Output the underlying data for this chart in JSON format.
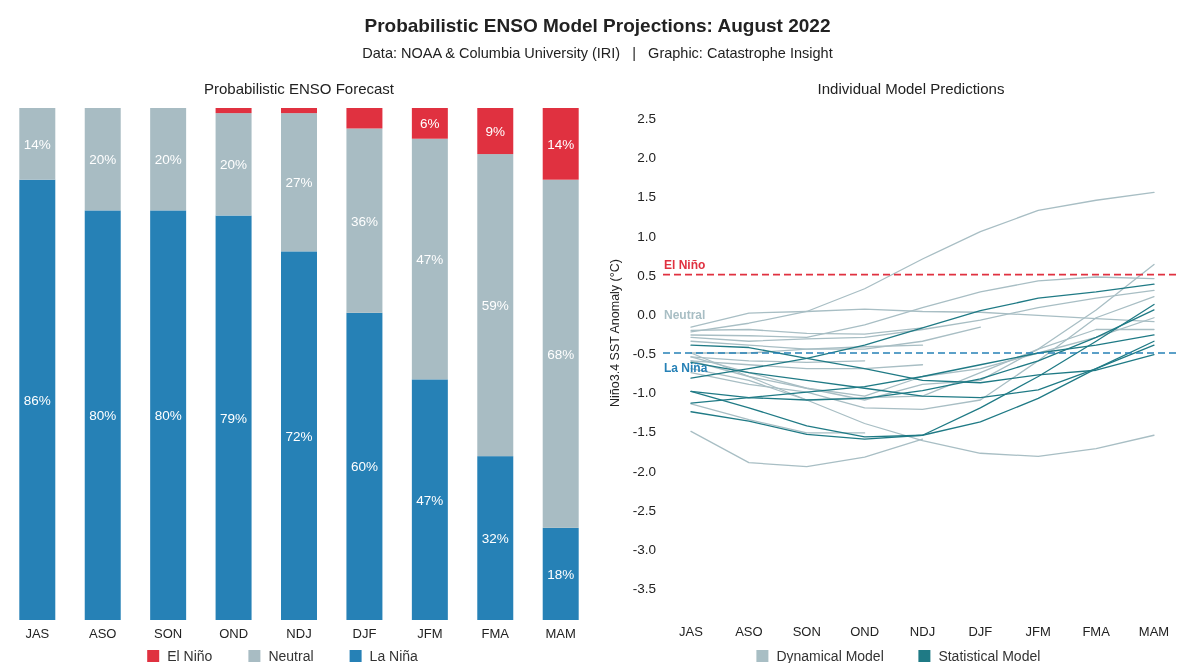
{
  "chart_data": [
    {
      "type": "other",
      "title": "Probabilistic ENSO Model Projections: August 2022",
      "subtitle": "Data: NOAA & Columbia University (IRI)   |   Graphic: Catastrophe Insight"
    },
    {
      "type": "bar",
      "title": "Probabilistic ENSO Forecast",
      "stacked": true,
      "categories": [
        "JAS",
        "ASO",
        "SON",
        "OND",
        "NDJ",
        "DJF",
        "JFM",
        "FMA",
        "MAM"
      ],
      "ylim": [
        0,
        100
      ],
      "tick_labels": "x",
      "grid": false,
      "legend": "bottom",
      "series": [
        {
          "name": "La Niña",
          "color": "#2681b6",
          "values": [
            86,
            80,
            80,
            79,
            72,
            60,
            47,
            32,
            18
          ],
          "value_labels": [
            "86%",
            "80%",
            "80%",
            "79%",
            "72%",
            "60%",
            "47%",
            "32%",
            "18%"
          ]
        },
        {
          "name": "Neutral",
          "color": "#a8bcc3",
          "values": [
            14,
            20,
            20,
            20,
            27,
            36,
            47,
            59,
            68
          ],
          "value_labels": [
            "14%",
            "20%",
            "20%",
            "20%",
            "27%",
            "36%",
            "47%",
            "59%",
            "68%"
          ]
        },
        {
          "name": "El Niño",
          "color": "#e03140",
          "values": [
            0,
            0,
            0,
            1,
            1,
            4,
            6,
            9,
            14
          ],
          "value_labels": [
            null,
            null,
            null,
            null,
            null,
            null,
            "6%",
            "9%",
            "14%"
          ]
        }
      ]
    },
    {
      "type": "line",
      "title": "Individual Model Predictions",
      "ylabel": "Niño3.4 SST Anomaly (°C)",
      "categories": [
        "JAS",
        "ASO",
        "SON",
        "OND",
        "NDJ",
        "DJF",
        "JFM",
        "FMA",
        "MAM"
      ],
      "ylim": [
        -3.5,
        2.5
      ],
      "yticks": [
        {
          "value": -3.5,
          "label": "-3.5"
        },
        {
          "value": -3,
          "label": "-3.0"
        },
        {
          "value": -2.5,
          "label": "-2.5"
        },
        {
          "value": -2,
          "label": "-2.0"
        },
        {
          "value": -1.5,
          "label": "-1.5"
        },
        {
          "value": -1,
          "label": "-1.0"
        },
        {
          "value": -0.5,
          "label": "-0.5"
        },
        {
          "value": 0,
          "label": "0.0"
        },
        {
          "value": 0.5,
          "label": "0.5"
        },
        {
          "value": 1,
          "label": "1.0"
        },
        {
          "value": 1.5,
          "label": "1.5"
        },
        {
          "value": 2,
          "label": "2.0"
        },
        {
          "value": 2.5,
          "label": "2.5"
        }
      ],
      "grid": false,
      "legend": "bottom",
      "ref_lines": [
        {
          "axis": "y",
          "value": 0.5,
          "label": "El Niño",
          "color": "#e03140",
          "line_style": "dashed"
        },
        {
          "axis": "y",
          "value": -0.5,
          "label": "La Niña",
          "color": "#2681b6",
          "line_style": "dashed"
        }
      ],
      "annotations": [
        "Neutral"
      ],
      "series": [
        {
          "name": "Dynamical Model",
          "color": "#a8bec4",
          "values": [
            -0.23,
            -0.12,
            0.03,
            0.32,
            0.7,
            1.05,
            1.32,
            1.45,
            1.55
          ]
        },
        {
          "color": "#a8bec4",
          "values": [
            -0.17,
            0.01,
            0.03,
            0.06,
            0.03,
            0.02,
            -0.02,
            -0.06,
            -0.1
          ]
        },
        {
          "color": "#a8bec4",
          "values": [
            -0.27,
            -0.28,
            -0.3,
            -0.14,
            0.08,
            0.28,
            0.42,
            0.47,
            0.45
          ]
        },
        {
          "color": "#a8bec4",
          "values": [
            -0.3,
            -0.35,
            -0.32,
            -0.3,
            -0.2,
            -0.08,
            0.08,
            0.2,
            0.3
          ]
        },
        {
          "color": "#a8bec4",
          "values": [
            -0.21,
            -0.2,
            -0.25,
            -0.26,
            -0.18,
            null,
            null,
            null,
            null
          ]
        },
        {
          "color": "#a8bec4",
          "values": [
            -0.35,
            -0.4,
            -0.45,
            -0.45,
            -0.35,
            -0.17,
            null,
            null,
            null
          ]
        },
        {
          "color": "#a8bec4",
          "values": [
            -0.5,
            -0.5,
            -0.45,
            -0.42,
            -0.4,
            null,
            null,
            null,
            null
          ]
        },
        {
          "color": "#a8bec4",
          "values": [
            -0.55,
            -0.6,
            -0.62,
            -0.6,
            null,
            null,
            null,
            null,
            null
          ]
        },
        {
          "color": "#a8bec4",
          "values": [
            -0.6,
            -0.65,
            -0.7,
            -0.7,
            -0.65,
            null,
            null,
            null,
            null
          ]
        },
        {
          "color": "#a8bec4",
          "values": [
            -0.5,
            -0.8,
            -1.1,
            -1.4,
            -1.62,
            -1.78,
            -1.82,
            -1.72,
            -1.55
          ]
        },
        {
          "color": "#a8bec4",
          "values": [
            -1.5,
            -1.9,
            -1.95,
            -1.83,
            -1.6,
            null,
            null,
            null,
            null
          ]
        },
        {
          "color": "#a8bec4",
          "values": [
            -1.15,
            -1.35,
            -1.52,
            -1.52,
            null,
            null,
            null,
            null,
            null
          ]
        },
        {
          "color": "#a8bec4",
          "values": [
            -0.75,
            -0.9,
            -1,
            -1.2,
            -1.22,
            -1.1,
            -0.6,
            -0.05,
            0.22
          ]
        },
        {
          "color": "#a8bec4",
          "values": [
            -0.7,
            -0.85,
            -1.1,
            -1.07,
            -1.05,
            -0.75,
            -0.45,
            -0.2,
            -0.2
          ]
        },
        {
          "color": "#a8bec4",
          "values": [
            -0.6,
            -0.8,
            -0.95,
            -1.05,
            -0.8,
            -0.7,
            -0.5,
            -0.3,
            -0.05
          ]
        },
        {
          "color": "#a8bec4",
          "values": [
            -0.55,
            -0.75,
            -0.95,
            -1.1,
            -0.9,
            -0.85,
            -0.45,
            0.05,
            0.63
          ]
        },
        {
          "name": "Statistical Model",
          "color": "#1f7a85",
          "values": [
            -0.4,
            -0.43,
            -0.57,
            -0.7,
            -0.85,
            -0.88,
            -0.78,
            -0.72,
            -0.52
          ]
        },
        {
          "color": "#1f7a85",
          "values": [
            -0.82,
            -0.7,
            -0.57,
            -0.4,
            -0.18,
            0.04,
            0.2,
            0.28,
            0.38
          ]
        },
        {
          "color": "#1f7a85",
          "values": [
            -0.62,
            -0.75,
            -0.85,
            -0.95,
            -1.05,
            -1.07,
            -0.97,
            -0.7,
            -0.4
          ]
        },
        {
          "color": "#1f7a85",
          "values": [
            -0.99,
            -1.07,
            -1,
            -0.93,
            -0.8,
            -0.65,
            -0.5,
            -0.4,
            -0.27
          ]
        },
        {
          "color": "#1f7a85",
          "values": [
            -1.14,
            -1.07,
            -1.1,
            -1.08,
            -0.98,
            -0.83,
            -0.6,
            -0.3,
            0.05
          ]
        },
        {
          "color": "#1f7a85",
          "values": [
            -0.99,
            -1.2,
            -1.43,
            -1.57,
            -1.55,
            -1.2,
            -0.8,
            -0.35,
            0.12
          ]
        },
        {
          "color": "#1f7a85",
          "values": [
            -1.25,
            -1.37,
            -1.54,
            -1.6,
            -1.55,
            -1.38,
            -1.08,
            -0.7,
            -0.35
          ]
        }
      ]
    }
  ]
}
